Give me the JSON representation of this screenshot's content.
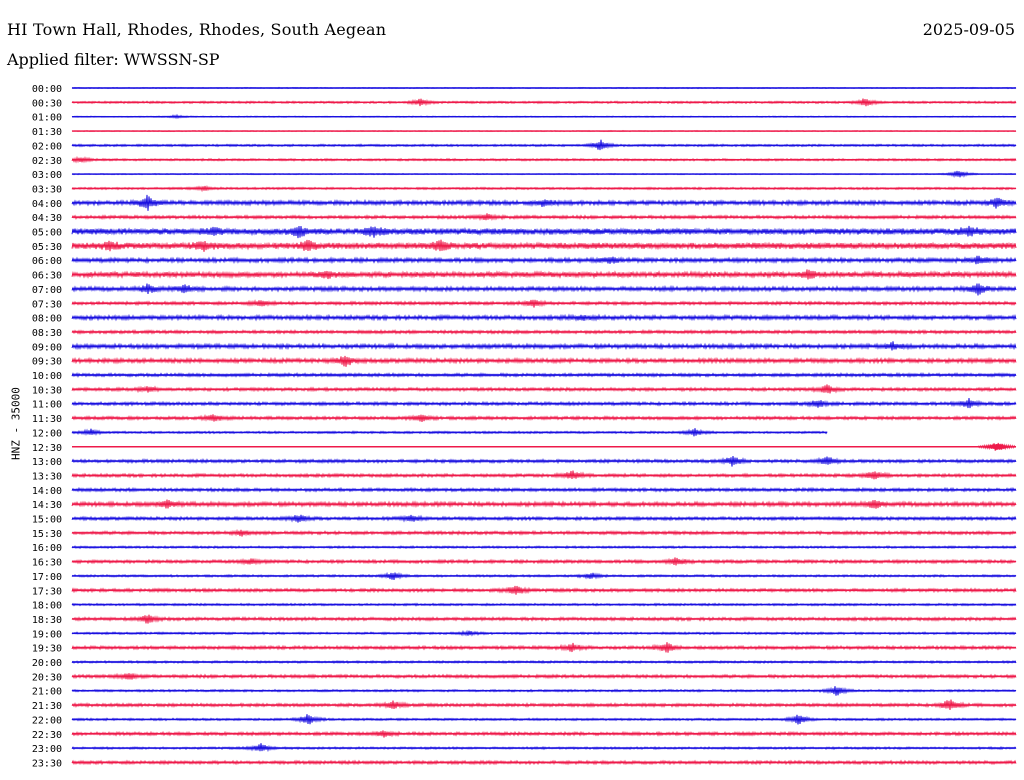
{
  "header": {
    "station": "HI Town Hall, Rhodes, Rhodes, South Aegean",
    "filter": "Applied filter: WWSSN-SP",
    "date": "2025-09-05"
  },
  "yaxis_label": "HNZ - 35000",
  "colors": {
    "even": "#1a10e0",
    "odd": "#ee1a4a"
  },
  "chart_data": {
    "type": "line",
    "title": "HI Town Hall, Rhodes, Rhodes, South Aegean",
    "subtitle": "Applied filter: WWSSN-SP",
    "ylabel": "HNZ - 35000",
    "rows": [
      "00:00",
      "00:30",
      "01:00",
      "01:30",
      "02:00",
      "02:30",
      "03:00",
      "03:30",
      "04:00",
      "04:30",
      "05:00",
      "05:30",
      "06:00",
      "06:30",
      "07:00",
      "07:30",
      "08:00",
      "08:30",
      "09:00",
      "09:30",
      "10:00",
      "10:30",
      "11:00",
      "11:30",
      "12:00",
      "12:30",
      "13:00",
      "13:30",
      "14:00",
      "14:30",
      "15:00",
      "15:30",
      "16:00",
      "16:30",
      "17:00",
      "17:30",
      "18:00",
      "18:30",
      "19:00",
      "19:30",
      "20:00",
      "20:30",
      "21:00",
      "21:30",
      "22:00",
      "22:30",
      "23:00",
      "23:30"
    ],
    "noise_level": [
      1,
      2,
      1,
      1,
      2,
      2,
      1,
      2,
      4,
      3,
      6,
      6,
      4,
      5,
      4,
      3,
      4,
      3,
      4,
      4,
      3,
      3,
      3,
      3,
      2,
      0,
      3,
      3,
      3,
      4,
      3,
      3,
      2,
      3,
      2,
      3,
      2,
      3,
      2,
      3,
      2,
      3,
      2,
      3,
      2,
      3,
      2,
      3
    ],
    "trace_extent": [
      1,
      1,
      1,
      1,
      1,
      1,
      1,
      1,
      1,
      1,
      1,
      1,
      1,
      1,
      1,
      1,
      1,
      1,
      1,
      1,
      1,
      1,
      1,
      1,
      0.8,
      1,
      1,
      1,
      1,
      1,
      1,
      1,
      1,
      1,
      1,
      1,
      1,
      1,
      1,
      1,
      1,
      1,
      1,
      1,
      1,
      1,
      1,
      1
    ],
    "events": [
      {
        "row": 1,
        "x": 0.37,
        "amp": 7
      },
      {
        "row": 1,
        "x": 0.84,
        "amp": 8
      },
      {
        "row": 2,
        "x": 0.11,
        "amp": 3
      },
      {
        "row": 4,
        "x": 0.56,
        "amp": 11
      },
      {
        "row": 5,
        "x": 0.01,
        "amp": 5
      },
      {
        "row": 6,
        "x": 0.94,
        "amp": 9
      },
      {
        "row": 7,
        "x": 0.14,
        "amp": 4
      },
      {
        "row": 8,
        "x": 0.08,
        "amp": 14
      },
      {
        "row": 8,
        "x": 0.5,
        "amp": 7
      },
      {
        "row": 8,
        "x": 0.98,
        "amp": 10
      },
      {
        "row": 9,
        "x": 0.44,
        "amp": 6
      },
      {
        "row": 10,
        "x": 0.15,
        "amp": 8
      },
      {
        "row": 10,
        "x": 0.24,
        "amp": 10
      },
      {
        "row": 10,
        "x": 0.32,
        "amp": 10
      },
      {
        "row": 10,
        "x": 0.95,
        "amp": 9
      },
      {
        "row": 11,
        "x": 0.04,
        "amp": 8
      },
      {
        "row": 11,
        "x": 0.14,
        "amp": 9
      },
      {
        "row": 11,
        "x": 0.25,
        "amp": 9
      },
      {
        "row": 11,
        "x": 0.39,
        "amp": 10
      },
      {
        "row": 12,
        "x": 0.57,
        "amp": 6
      },
      {
        "row": 12,
        "x": 0.96,
        "amp": 7
      },
      {
        "row": 13,
        "x": 0.27,
        "amp": 6
      },
      {
        "row": 13,
        "x": 0.78,
        "amp": 8
      },
      {
        "row": 14,
        "x": 0.08,
        "amp": 9
      },
      {
        "row": 14,
        "x": 0.12,
        "amp": 8
      },
      {
        "row": 14,
        "x": 0.96,
        "amp": 11
      },
      {
        "row": 15,
        "x": 0.2,
        "amp": 6
      },
      {
        "row": 15,
        "x": 0.49,
        "amp": 7
      },
      {
        "row": 16,
        "x": 0.54,
        "amp": 4
      },
      {
        "row": 18,
        "x": 0.87,
        "amp": 7
      },
      {
        "row": 19,
        "x": 0.29,
        "amp": 11
      },
      {
        "row": 21,
        "x": 0.08,
        "amp": 6
      },
      {
        "row": 21,
        "x": 0.8,
        "amp": 9
      },
      {
        "row": 22,
        "x": 0.79,
        "amp": 8
      },
      {
        "row": 22,
        "x": 0.95,
        "amp": 10
      },
      {
        "row": 23,
        "x": 0.15,
        "amp": 7
      },
      {
        "row": 23,
        "x": 0.37,
        "amp": 7
      },
      {
        "row": 24,
        "x": 0.02,
        "amp": 6
      },
      {
        "row": 24,
        "x": 0.66,
        "amp": 8
      },
      {
        "row": 25,
        "x": 0.98,
        "amp": 9
      },
      {
        "row": 26,
        "x": 0.7,
        "amp": 10
      },
      {
        "row": 26,
        "x": 0.8,
        "amp": 9
      },
      {
        "row": 27,
        "x": 0.53,
        "amp": 9
      },
      {
        "row": 27,
        "x": 0.85,
        "amp": 10
      },
      {
        "row": 29,
        "x": 0.1,
        "amp": 8
      },
      {
        "row": 29,
        "x": 0.85,
        "amp": 9
      },
      {
        "row": 30,
        "x": 0.24,
        "amp": 8
      },
      {
        "row": 30,
        "x": 0.36,
        "amp": 6
      },
      {
        "row": 31,
        "x": 0.18,
        "amp": 6
      },
      {
        "row": 33,
        "x": 0.19,
        "amp": 5
      },
      {
        "row": 33,
        "x": 0.64,
        "amp": 8
      },
      {
        "row": 34,
        "x": 0.34,
        "amp": 8
      },
      {
        "row": 34,
        "x": 0.55,
        "amp": 6
      },
      {
        "row": 35,
        "x": 0.47,
        "amp": 12
      },
      {
        "row": 37,
        "x": 0.08,
        "amp": 9
      },
      {
        "row": 38,
        "x": 0.42,
        "amp": 4
      },
      {
        "row": 39,
        "x": 0.53,
        "amp": 8
      },
      {
        "row": 39,
        "x": 0.63,
        "amp": 10
      },
      {
        "row": 41,
        "x": 0.06,
        "amp": 7
      },
      {
        "row": 42,
        "x": 0.81,
        "amp": 10
      },
      {
        "row": 43,
        "x": 0.34,
        "amp": 8
      },
      {
        "row": 43,
        "x": 0.93,
        "amp": 12
      },
      {
        "row": 44,
        "x": 0.25,
        "amp": 12
      },
      {
        "row": 44,
        "x": 0.77,
        "amp": 10
      },
      {
        "row": 45,
        "x": 0.33,
        "amp": 6
      },
      {
        "row": 46,
        "x": 0.2,
        "amp": 9
      }
    ]
  }
}
